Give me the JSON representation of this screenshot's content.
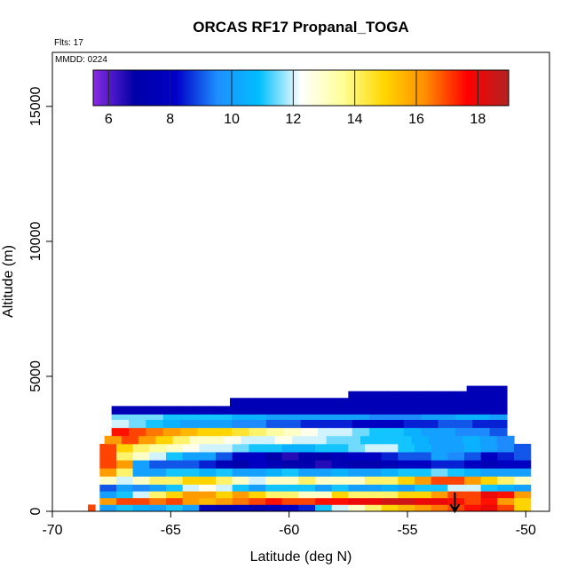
{
  "chart_data": {
    "type": "heatmap",
    "title": "ORCAS RF17 Propanal_TOGA",
    "flights_label": "Flts: 17",
    "date_label": "MMDD: 0224",
    "xlabel": "Latitude (deg N)",
    "ylabel": "Altitude (m)",
    "xlim": [
      -70,
      -49
    ],
    "ylim": [
      0,
      17000
    ],
    "x_ticks": [
      -70,
      -65,
      -60,
      -55,
      -50
    ],
    "y_ticks": [
      0,
      5000,
      10000,
      15000
    ],
    "colorbar": {
      "range": [
        5.5,
        19
      ],
      "ticks": [
        6,
        8,
        10,
        12,
        14,
        16,
        18
      ],
      "stops": [
        "#8a2be2",
        "#0000a8",
        "#0000c8",
        "#1e90ff",
        "#00bfff",
        "#ffffff",
        "#ffff99",
        "#ffd700",
        "#ff8c00",
        "#ff0000",
        "#b22222"
      ]
    },
    "rows": [
      {
        "alt": [
          0,
          250
        ],
        "x0": -68.5,
        "x1": -68.2,
        "v": [
          17
        ]
      },
      {
        "alt": [
          0,
          250
        ],
        "x0": -68.0,
        "x1": -49.8,
        "v": [
          10,
          11,
          10.5,
          10,
          11,
          10,
          7.5,
          7,
          7.5,
          7,
          7.5,
          8,
          8.5,
          11,
          12,
          13,
          14,
          15,
          15.5,
          16,
          16.5,
          17,
          17.5,
          18,
          17,
          15
        ]
      },
      {
        "alt": [
          250,
          500
        ],
        "x0": -68.0,
        "x1": -49.8,
        "v": [
          16,
          17,
          17,
          16.5,
          17,
          16,
          15.5,
          16,
          16.5,
          17,
          17.5,
          17,
          17,
          17.5,
          17.5,
          18,
          18,
          18.5,
          18.5,
          18,
          18,
          17.5,
          17,
          17.5,
          16,
          15
        ]
      },
      {
        "alt": [
          500,
          750
        ],
        "x0": -68.0,
        "x1": -49.8,
        "v": [
          10,
          11,
          12,
          14,
          15,
          16,
          16,
          15,
          16,
          15,
          14,
          14,
          13,
          13,
          15,
          14,
          14,
          14,
          15,
          15,
          16,
          17,
          17,
          18,
          17.5,
          16
        ]
      },
      {
        "alt": [
          750,
          1000
        ],
        "x0": -68.0,
        "x1": -49.8,
        "v": [
          9,
          10,
          9.5,
          10,
          11,
          12,
          12.5,
          12,
          11,
          10,
          11,
          11,
          11,
          10,
          11,
          10,
          10,
          10.5,
          10,
          11,
          11,
          12,
          12,
          11,
          10.5,
          10
        ]
      },
      {
        "alt": [
          1000,
          1300
        ],
        "x0": -68.0,
        "x1": -49.8,
        "v": [
          13,
          12,
          13,
          14,
          14,
          15,
          15,
          14,
          13,
          12,
          13,
          13,
          14,
          13,
          13,
          13,
          14,
          14,
          15,
          16,
          17,
          17,
          16,
          15,
          14,
          13
        ]
      },
      {
        "alt": [
          1300,
          1600
        ],
        "x0": -68.0,
        "x1": -49.8,
        "v": [
          16,
          14,
          10,
          10,
          11,
          11,
          10.5,
          11,
          10,
          10,
          10.5,
          11,
          10,
          10,
          10.5,
          10,
          10,
          10.5,
          11,
          11,
          11.5,
          11,
          10.5,
          10,
          10,
          10
        ]
      },
      {
        "alt": [
          1600,
          1900
        ],
        "x0": -68.0,
        "x1": -49.8,
        "v": [
          17,
          16,
          10,
          9,
          9,
          9,
          8.5,
          7.5,
          7,
          8,
          7.5,
          7,
          7,
          6.5,
          7.5,
          7,
          7,
          7.5,
          8,
          8,
          8.5,
          8.5,
          8,
          7.5,
          8,
          8
        ]
      },
      {
        "alt": [
          1900,
          2200
        ],
        "x0": -68.0,
        "x1": -49.8,
        "v": [
          17,
          14,
          13,
          12,
          11,
          10,
          10,
          9,
          8,
          8,
          7,
          6.5,
          7,
          7,
          7.5,
          8,
          8,
          8.5,
          9,
          9,
          10,
          9.5,
          9,
          8,
          8.5,
          9
        ]
      },
      {
        "alt": [
          2200,
          2500
        ],
        "x0": -68.0,
        "x1": -49.8,
        "v": [
          17,
          15,
          14,
          13.5,
          13,
          12.5,
          12,
          12,
          11.5,
          11,
          11,
          10.5,
          10.5,
          11,
          11,
          11.5,
          12,
          12,
          11,
          10.5,
          10,
          10,
          10.5,
          10,
          9.5,
          9
        ]
      },
      {
        "alt": [
          2500,
          2800
        ],
        "x0": -67.8,
        "x1": -50.5,
        "v": [
          16,
          17,
          16,
          15,
          14,
          13,
          13,
          12.5,
          12,
          12,
          12.5,
          12,
          12,
          11.5,
          11.5,
          11,
          11,
          11,
          10.5,
          10,
          10,
          10.5,
          10,
          9.5
        ]
      },
      {
        "alt": [
          2800,
          3100
        ],
        "x0": -67.5,
        "x1": -50.8,
        "v": [
          17.5,
          17,
          16.5,
          16,
          15.5,
          15,
          15,
          14.5,
          14,
          13.5,
          13,
          12.5,
          12,
          12,
          11.5,
          11,
          11,
          10.5,
          10,
          10,
          9.5,
          9.5,
          9
        ]
      },
      {
        "alt": [
          3100,
          3400
        ],
        "x0": -67.5,
        "x1": -50.8,
        "v": [
          12,
          11.5,
          11,
          10.5,
          10,
          10,
          10,
          9.5,
          9.5,
          9,
          9,
          8.5,
          8.5,
          8.5,
          8,
          8,
          8,
          8.5,
          8.5,
          9,
          9,
          8.5,
          8.5
        ]
      },
      {
        "alt": [
          3400,
          3600
        ],
        "x0": -67.5,
        "x1": -50.8,
        "v": [
          11.5,
          11.5,
          11.5,
          11,
          11,
          11,
          11,
          10.5,
          10.5,
          10,
          10,
          10,
          10,
          10,
          10,
          9.5,
          9.5,
          9.5,
          10,
          10,
          10.5,
          10.5,
          10
        ]
      },
      {
        "alt": [
          3600,
          3900
        ],
        "x0": -67.5,
        "x1": -50.8,
        "v": [
          7.5,
          7.5,
          7.5,
          7.5,
          7.5,
          7.5,
          7.5,
          7.5,
          7.5,
          7.5,
          7.5,
          7.5,
          7.5,
          7.5,
          7.5,
          7.5,
          7.5,
          7.5,
          7.5,
          7.5,
          7.5,
          7.5,
          7.5
        ]
      },
      {
        "alt": [
          3900,
          4200
        ],
        "x0": -62.5,
        "x1": -50.8,
        "v": [
          7.5,
          7.5,
          7.5,
          7.5,
          7.5,
          7.5,
          7.5,
          7.5,
          7.5,
          7.5,
          7.5,
          7.5,
          7.5,
          7.5,
          7.5
        ]
      },
      {
        "alt": [
          4200,
          4450
        ],
        "x0": -57.5,
        "x1": -50.8,
        "v": [
          7.5,
          7.5,
          7.5,
          7.5,
          7.5,
          7.5,
          7.5,
          7.5
        ]
      },
      {
        "alt": [
          4450,
          4650
        ],
        "x0": -52.5,
        "x1": -50.8,
        "v": [
          7.5,
          7.5
        ]
      }
    ],
    "annotations": [
      {
        "type": "arrow",
        "x": -53.0,
        "y_from": 700,
        "y_to": 0,
        "color": "#000000"
      }
    ]
  }
}
